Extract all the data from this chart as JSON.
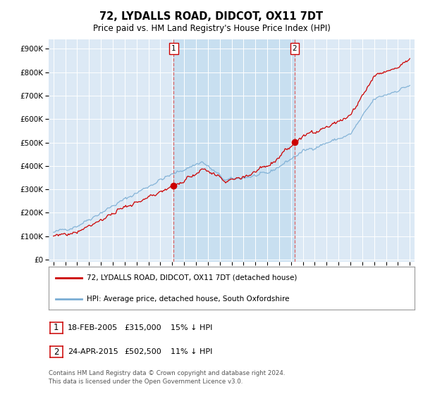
{
  "title": "72, LYDALLS ROAD, DIDCOT, OX11 7DT",
  "subtitle": "Price paid vs. HM Land Registry's House Price Index (HPI)",
  "yticks": [
    0,
    100000,
    200000,
    300000,
    400000,
    500000,
    600000,
    700000,
    800000,
    900000
  ],
  "ylim": [
    -10000,
    940000
  ],
  "plot_bg_color": "#dce9f5",
  "hpi_color": "#7aadd4",
  "price_color": "#cc0000",
  "shade_color": "#c8dff0",
  "vline_color": "#dd6666",
  "legend_line1": "72, LYDALLS ROAD, DIDCOT, OX11 7DT (detached house)",
  "legend_line2": "HPI: Average price, detached house, South Oxfordshire",
  "footer": "Contains HM Land Registry data © Crown copyright and database right 2024.\nThis data is licensed under the Open Government Licence v3.0.",
  "sale1_year": 2005.13,
  "sale1_val": 315000,
  "sale2_year": 2015.31,
  "sale2_val": 502500,
  "date1_text": "18-FEB-2005",
  "price1_text": "£315,000",
  "hpi1_text": "15% ↓ HPI",
  "date2_text": "24-APR-2015",
  "price2_text": "£502,500",
  "hpi2_text": "11% ↓ HPI"
}
